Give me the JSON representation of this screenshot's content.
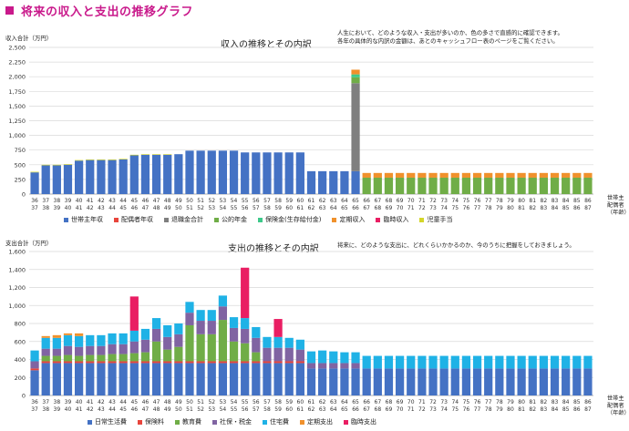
{
  "page": {
    "title": "将来の収入と支出の推移グラフ",
    "accent_color": "#c9198b"
  },
  "income": {
    "note_line1": "人生において、どのような収入・支出が多いのか、色の多さで直感的に確認できます。",
    "note_line2": "各年の具体的な内訳の金額は、あとのキャッシュフロー表のページをご覧ください。",
    "corner_line1": "世帯主",
    "corner_line2": "配偶者",
    "corner_line3": "（年齢）"
  },
  "expense": {
    "note": "将来に、どのような支出に、どれくらいかかるのか、今のうちに把握をしておきましょう。",
    "corner_line1": "世帯主",
    "corner_line2": "配偶者",
    "corner_line3": "（年齢）"
  },
  "chart_data": [
    {
      "type": "bar",
      "stacked": true,
      "title": "収入の推移とその内訳",
      "ylabel": "収入合計（万円）",
      "ylim": [
        0,
        2500
      ],
      "yticks": [
        0,
        250,
        500,
        750,
        1000,
        1250,
        1500,
        1750,
        2000,
        2250,
        2500
      ],
      "ytick_labels": [
        "0",
        "250",
        "500",
        "750",
        "1,000",
        "1,250",
        "1,500",
        "1,750",
        "2,000",
        "2,250",
        "2,500"
      ],
      "grid": true,
      "legend_position": "bottom",
      "categories_householder": [
        36,
        37,
        38,
        39,
        40,
        41,
        42,
        43,
        44,
        45,
        46,
        47,
        48,
        49,
        50,
        51,
        52,
        53,
        54,
        55,
        56,
        57,
        58,
        59,
        60,
        61,
        62,
        63,
        64,
        65,
        66,
        67,
        68,
        69,
        70,
        71,
        72,
        73,
        74,
        75,
        76,
        77,
        78,
        79,
        80,
        81,
        82,
        83,
        84,
        85,
        86
      ],
      "categories_spouse": [
        37,
        38,
        39,
        40,
        41,
        42,
        43,
        44,
        45,
        46,
        47,
        48,
        49,
        50,
        51,
        52,
        53,
        54,
        55,
        56,
        57,
        58,
        59,
        60,
        61,
        62,
        63,
        64,
        65,
        66,
        67,
        68,
        69,
        70,
        71,
        72,
        73,
        74,
        75,
        76,
        77,
        78,
        79,
        80,
        81,
        82,
        83,
        84,
        85,
        86,
        87
      ],
      "series": [
        {
          "name": "世帯主年収",
          "color": "#4472c4",
          "values": [
            370,
            490,
            490,
            500,
            570,
            580,
            580,
            580,
            590,
            660,
            670,
            670,
            670,
            680,
            740,
            740,
            740,
            740,
            740,
            710,
            710,
            710,
            710,
            710,
            710,
            390,
            390,
            390,
            390,
            390,
            0,
            0,
            0,
            0,
            0,
            0,
            0,
            0,
            0,
            0,
            0,
            0,
            0,
            0,
            0,
            0,
            0,
            0,
            0,
            0,
            0
          ]
        },
        {
          "name": "配偶者年収",
          "color": "#e8453c",
          "values": [
            0,
            0,
            0,
            0,
            0,
            0,
            0,
            0,
            0,
            0,
            0,
            0,
            0,
            0,
            0,
            0,
            0,
            0,
            0,
            0,
            0,
            0,
            0,
            0,
            0,
            0,
            0,
            0,
            0,
            0,
            0,
            0,
            0,
            0,
            0,
            0,
            0,
            0,
            0,
            0,
            0,
            0,
            0,
            0,
            0,
            0,
            0,
            0,
            0,
            0,
            0
          ]
        },
        {
          "name": "退職金合計",
          "color": "#7f7f7f",
          "values": [
            0,
            0,
            0,
            0,
            0,
            0,
            0,
            0,
            0,
            0,
            0,
            0,
            0,
            0,
            0,
            0,
            0,
            0,
            0,
            0,
            0,
            0,
            0,
            0,
            0,
            0,
            0,
            0,
            0,
            1500,
            0,
            0,
            0,
            0,
            0,
            0,
            0,
            0,
            0,
            0,
            0,
            0,
            0,
            0,
            0,
            0,
            0,
            0,
            0,
            0,
            0
          ]
        },
        {
          "name": "公的年金",
          "color": "#70ad47",
          "values": [
            0,
            0,
            0,
            0,
            0,
            0,
            0,
            0,
            0,
            0,
            0,
            0,
            0,
            0,
            0,
            0,
            0,
            0,
            0,
            0,
            0,
            0,
            0,
            0,
            0,
            0,
            0,
            0,
            0,
            100,
            280,
            280,
            280,
            280,
            280,
            280,
            280,
            280,
            280,
            280,
            280,
            280,
            280,
            280,
            280,
            280,
            280,
            280,
            280,
            280,
            280
          ]
        },
        {
          "name": "保険金(生存給付金)",
          "color": "#3dc98a",
          "values": [
            0,
            0,
            0,
            0,
            0,
            0,
            0,
            0,
            0,
            0,
            0,
            0,
            0,
            0,
            0,
            0,
            0,
            0,
            0,
            0,
            0,
            0,
            0,
            0,
            0,
            0,
            0,
            0,
            0,
            50,
            0,
            0,
            0,
            0,
            0,
            0,
            0,
            0,
            0,
            0,
            0,
            0,
            0,
            0,
            0,
            0,
            0,
            0,
            0,
            0,
            0
          ]
        },
        {
          "name": "定期収入",
          "color": "#f0912c",
          "values": [
            0,
            0,
            0,
            0,
            0,
            0,
            0,
            0,
            0,
            0,
            0,
            0,
            0,
            0,
            0,
            0,
            0,
            0,
            0,
            0,
            0,
            0,
            0,
            0,
            0,
            0,
            0,
            0,
            0,
            80,
            80,
            80,
            80,
            80,
            80,
            80,
            80,
            80,
            80,
            80,
            80,
            80,
            80,
            80,
            80,
            80,
            80,
            80,
            80,
            80,
            80
          ]
        },
        {
          "name": "臨時収入",
          "color": "#e91e63",
          "values": [
            0,
            0,
            0,
            0,
            0,
            0,
            0,
            0,
            0,
            0,
            0,
            0,
            0,
            0,
            0,
            0,
            0,
            0,
            0,
            0,
            0,
            0,
            0,
            0,
            0,
            0,
            0,
            0,
            0,
            0,
            0,
            0,
            0,
            0,
            0,
            0,
            0,
            0,
            0,
            0,
            0,
            0,
            0,
            0,
            0,
            0,
            0,
            0,
            0,
            0,
            0
          ]
        },
        {
          "name": "児童手当",
          "color": "#d4d62a",
          "values": [
            10,
            10,
            10,
            10,
            10,
            10,
            10,
            10,
            10,
            10,
            10,
            10,
            10,
            0,
            0,
            0,
            0,
            0,
            0,
            0,
            0,
            0,
            0,
            0,
            0,
            0,
            0,
            0,
            0,
            0,
            0,
            0,
            0,
            0,
            0,
            0,
            0,
            0,
            0,
            0,
            0,
            0,
            0,
            0,
            0,
            0,
            0,
            0,
            0,
            0,
            0
          ]
        }
      ]
    },
    {
      "type": "bar",
      "stacked": true,
      "title": "支出の推移とその内訳",
      "ylabel": "支出合計（万円）",
      "ylim": [
        0,
        1600
      ],
      "yticks": [
        0,
        200,
        400,
        600,
        800,
        1000,
        1200,
        1400,
        1600
      ],
      "ytick_labels": [
        "0",
        "200",
        "400",
        "600",
        "800",
        "1,000",
        "1,200",
        "1,400",
        "1,600"
      ],
      "grid": true,
      "legend_position": "bottom",
      "categories_householder": [
        36,
        37,
        38,
        39,
        40,
        41,
        42,
        43,
        44,
        45,
        46,
        47,
        48,
        49,
        50,
        51,
        52,
        53,
        54,
        55,
        56,
        57,
        58,
        59,
        60,
        61,
        62,
        63,
        64,
        65,
        66,
        67,
        68,
        69,
        70,
        71,
        72,
        73,
        74,
        75,
        76,
        77,
        78,
        79,
        80,
        81,
        82,
        83,
        84,
        85,
        86
      ],
      "categories_spouse": [
        37,
        38,
        39,
        40,
        41,
        42,
        43,
        44,
        45,
        46,
        47,
        48,
        49,
        50,
        51,
        52,
        53,
        54,
        55,
        56,
        57,
        58,
        59,
        60,
        61,
        62,
        63,
        64,
        65,
        66,
        67,
        68,
        69,
        70,
        71,
        72,
        73,
        74,
        75,
        76,
        77,
        78,
        79,
        80,
        81,
        82,
        83,
        84,
        85,
        86,
        87
      ],
      "series": [
        {
          "name": "日常生活費",
          "color": "#4472c4",
          "values": [
            280,
            360,
            360,
            360,
            360,
            360,
            360,
            360,
            360,
            360,
            360,
            360,
            360,
            360,
            360,
            360,
            360,
            360,
            360,
            360,
            360,
            360,
            360,
            360,
            360,
            300,
            300,
            300,
            300,
            300,
            300,
            300,
            300,
            300,
            300,
            300,
            300,
            300,
            300,
            300,
            300,
            300,
            300,
            300,
            300,
            300,
            300,
            300,
            300,
            300,
            300
          ]
        },
        {
          "name": "保険料",
          "color": "#e8453c",
          "values": [
            20,
            20,
            20,
            20,
            20,
            20,
            20,
            20,
            20,
            20,
            20,
            20,
            20,
            20,
            20,
            20,
            20,
            20,
            20,
            20,
            20,
            20,
            20,
            20,
            20,
            0,
            0,
            0,
            0,
            0,
            0,
            0,
            0,
            0,
            0,
            0,
            0,
            0,
            0,
            0,
            0,
            0,
            0,
            0,
            0,
            0,
            0,
            0,
            0,
            0,
            0
          ]
        },
        {
          "name": "教育費",
          "color": "#70ad47",
          "values": [
            0,
            60,
            60,
            70,
            60,
            70,
            70,
            80,
            80,
            90,
            100,
            220,
            130,
            160,
            400,
            300,
            300,
            460,
            220,
            200,
            100,
            0,
            0,
            0,
            0,
            0,
            0,
            0,
            0,
            0,
            0,
            0,
            0,
            0,
            0,
            0,
            0,
            0,
            0,
            0,
            0,
            0,
            0,
            0,
            0,
            0,
            0,
            0,
            0,
            0,
            0
          ]
        },
        {
          "name": "社保・税金",
          "color": "#8064a2",
          "values": [
            80,
            80,
            80,
            100,
            100,
            100,
            100,
            110,
            110,
            130,
            140,
            140,
            140,
            140,
            140,
            150,
            150,
            150,
            150,
            160,
            160,
            150,
            150,
            150,
            130,
            60,
            60,
            60,
            60,
            60,
            0,
            0,
            0,
            0,
            0,
            0,
            0,
            0,
            0,
            0,
            0,
            0,
            0,
            0,
            0,
            0,
            0,
            0,
            0,
            0,
            0
          ]
        },
        {
          "name": "住宅費",
          "color": "#1fb2e6",
          "values": [
            120,
            120,
            120,
            120,
            120,
            120,
            120,
            120,
            120,
            120,
            120,
            120,
            130,
            120,
            120,
            120,
            120,
            120,
            120,
            120,
            120,
            120,
            120,
            110,
            110,
            130,
            140,
            130,
            120,
            120,
            140,
            140,
            140,
            140,
            140,
            140,
            140,
            140,
            140,
            140,
            140,
            140,
            140,
            140,
            140,
            140,
            140,
            140,
            140,
            140,
            140
          ]
        },
        {
          "name": "定期支出",
          "color": "#f0912c",
          "values": [
            0,
            20,
            30,
            20,
            30,
            0,
            0,
            0,
            0,
            0,
            0,
            0,
            0,
            0,
            0,
            0,
            0,
            0,
            0,
            0,
            0,
            0,
            0,
            0,
            0,
            0,
            0,
            0,
            0,
            0,
            0,
            0,
            0,
            0,
            0,
            0,
            0,
            0,
            0,
            0,
            0,
            0,
            0,
            0,
            0,
            0,
            0,
            0,
            0,
            0,
            0
          ]
        },
        {
          "name": "臨時支出",
          "color": "#e91e63",
          "values": [
            0,
            0,
            0,
            0,
            0,
            0,
            0,
            0,
            0,
            380,
            0,
            0,
            0,
            0,
            0,
            0,
            0,
            0,
            0,
            560,
            0,
            0,
            200,
            0,
            0,
            0,
            0,
            0,
            0,
            0,
            0,
            0,
            0,
            0,
            0,
            0,
            0,
            0,
            0,
            0,
            0,
            0,
            0,
            0,
            0,
            0,
            0,
            0,
            0,
            0,
            0
          ]
        }
      ]
    }
  ]
}
